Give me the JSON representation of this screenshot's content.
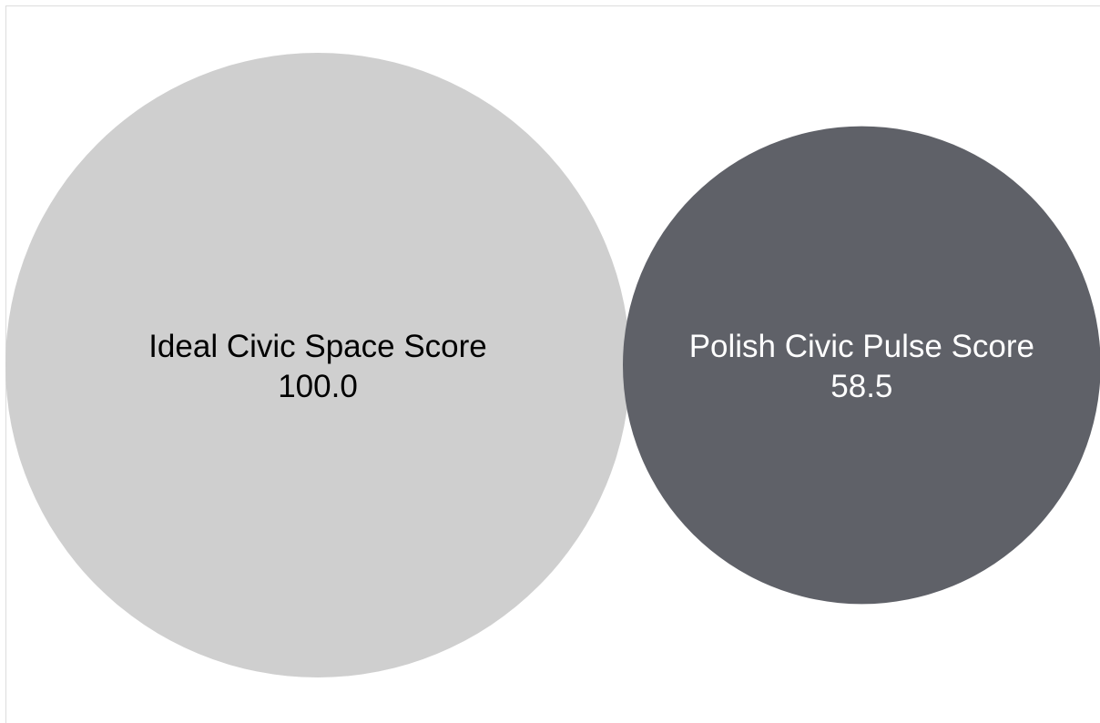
{
  "chart_data": {
    "type": "bubble",
    "title": "",
    "bubbles": [
      {
        "label": "Ideal Civic Space Score",
        "value_text": "100.0",
        "value": 100.0,
        "color": "#cfcfcf",
        "text_color": "#000000"
      },
      {
        "label": "Polish Civic Pulse Score",
        "value_text": "58.5",
        "value": 58.5,
        "color": "#5f6168",
        "text_color": "#ffffff"
      }
    ]
  }
}
